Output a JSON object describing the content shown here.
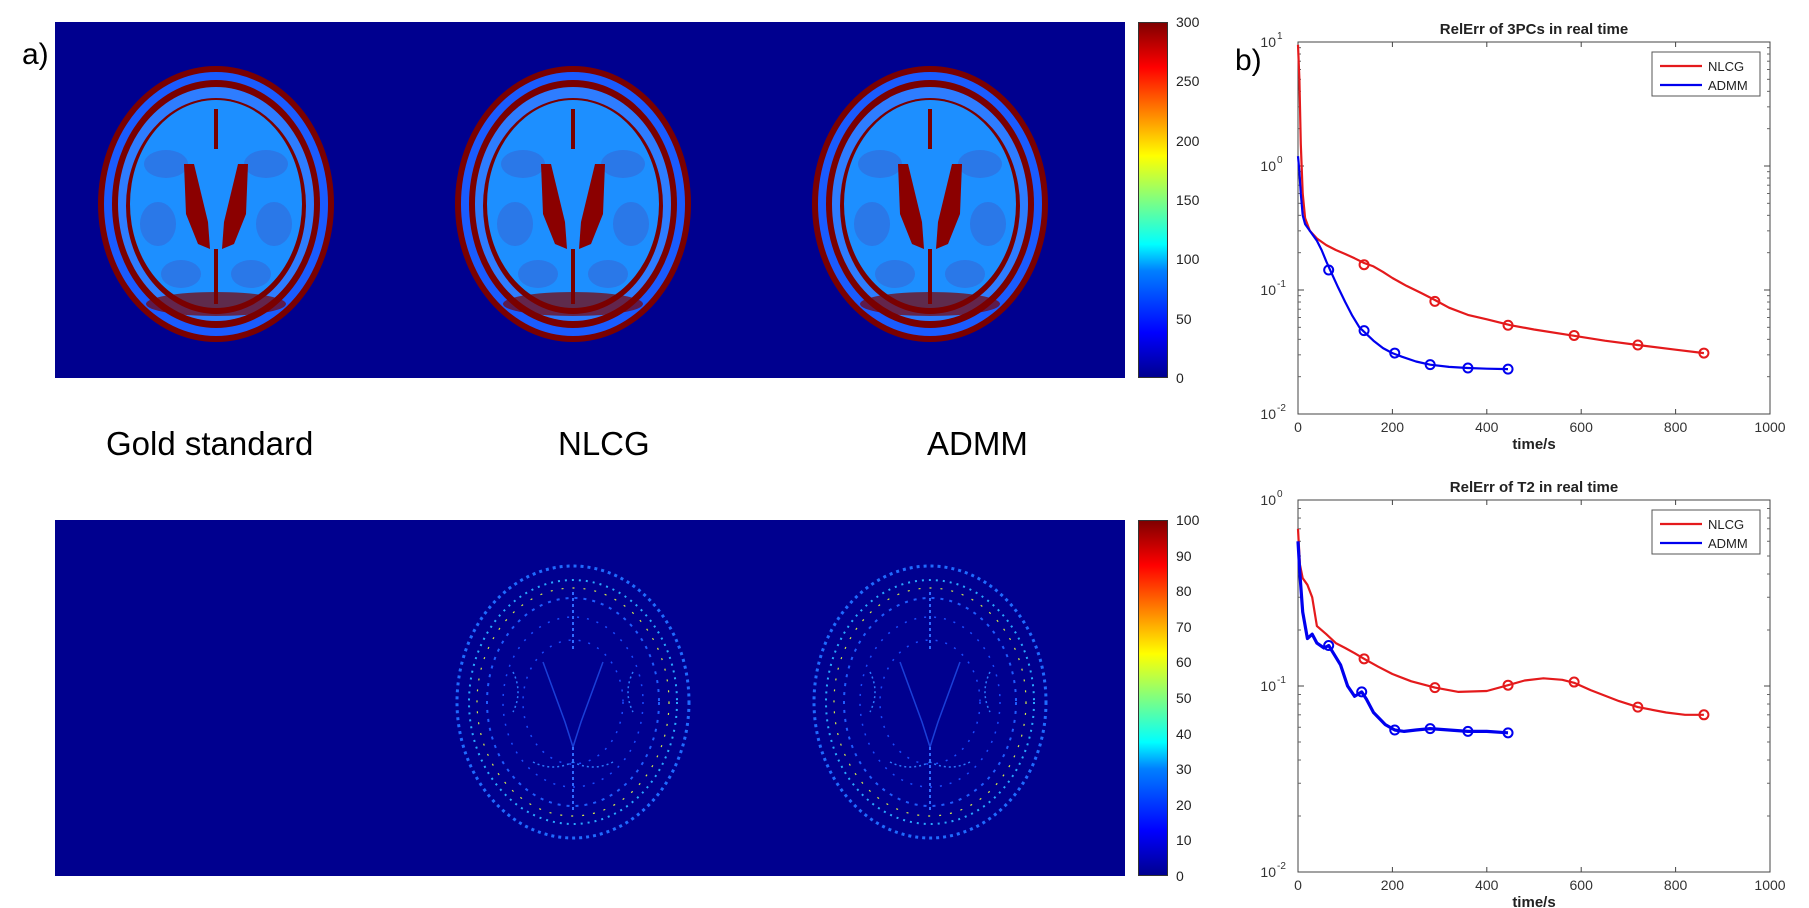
{
  "panel_a": {
    "label": "a)",
    "captions": [
      "Gold standard",
      "NLCG",
      "ADMM"
    ],
    "top_colorbar": {
      "ticks": [
        "300",
        "250",
        "200",
        "150",
        "100",
        "50",
        "0"
      ],
      "max": 300
    },
    "bottom_colorbar": {
      "ticks": [
        "100",
        "90",
        "80",
        "70",
        "60",
        "50",
        "40",
        "30",
        "20",
        "10",
        "0"
      ],
      "max": 100
    }
  },
  "panel_b": {
    "label": "b)"
  },
  "chart_data": [
    {
      "type": "line",
      "title": "RelErr of 3PCs in real time",
      "xlabel": "time/s",
      "ylabel": "",
      "xlim": [
        0,
        1000
      ],
      "ylim": [
        0.01,
        10
      ],
      "yscale": "log",
      "xticks": [
        "0",
        "200",
        "400",
        "600",
        "800",
        "1000"
      ],
      "ytick_values": [
        0.01,
        0.1,
        1,
        10
      ],
      "yticks": [
        {
          "base": "10",
          "exp": "-2"
        },
        {
          "base": "10",
          "exp": "-1"
        },
        {
          "base": "10",
          "exp": "0"
        },
        {
          "base": "10",
          "exp": "1"
        }
      ],
      "legend": "top-right",
      "series": [
        {
          "name": "NLCG",
          "color": "#e41a1c",
          "x": [
            0,
            3,
            6,
            10,
            15,
            25,
            40,
            60,
            80,
            100,
            120,
            140,
            160,
            180,
            200,
            230,
            260,
            290,
            320,
            360,
            400,
            450,
            500,
            580,
            650,
            720,
            800,
            860
          ],
          "y": [
            9.5,
            5.0,
            1.5,
            0.6,
            0.38,
            0.3,
            0.26,
            0.23,
            0.21,
            0.195,
            0.18,
            0.165,
            0.155,
            0.14,
            0.125,
            0.108,
            0.095,
            0.083,
            0.072,
            0.063,
            0.058,
            0.052,
            0.048,
            0.043,
            0.039,
            0.036,
            0.033,
            0.031
          ],
          "markers_x": [
            140,
            290,
            445,
            585,
            720,
            860
          ],
          "markers_y": [
            0.16,
            0.081,
            0.052,
            0.043,
            0.036,
            0.031
          ]
        },
        {
          "name": "ADMM",
          "color": "#0000ee",
          "x": [
            0,
            3,
            6,
            10,
            15,
            25,
            40,
            50,
            60,
            70,
            85,
            100,
            115,
            130,
            140,
            160,
            180,
            200,
            220,
            250,
            280,
            320,
            360,
            400,
            445
          ],
          "y": [
            1.2,
            0.9,
            0.6,
            0.4,
            0.34,
            0.3,
            0.25,
            0.21,
            0.17,
            0.14,
            0.105,
            0.08,
            0.062,
            0.05,
            0.046,
            0.039,
            0.034,
            0.031,
            0.029,
            0.0265,
            0.025,
            0.024,
            0.0235,
            0.0232,
            0.023
          ],
          "markers_x": [
            65,
            140,
            205,
            280,
            360,
            445
          ],
          "markers_y": [
            0.145,
            0.047,
            0.031,
            0.025,
            0.0235,
            0.023
          ]
        }
      ]
    },
    {
      "type": "line",
      "title": "RelErr of T2 in real time",
      "xlabel": "time/s",
      "ylabel": "",
      "xlim": [
        0,
        1000
      ],
      "ylim": [
        0.01,
        1
      ],
      "yscale": "log",
      "xticks": [
        "0",
        "200",
        "400",
        "600",
        "800",
        "1000"
      ],
      "ytick_values": [
        0.01,
        0.1,
        1
      ],
      "yticks": [
        {
          "base": "10",
          "exp": "-2"
        },
        {
          "base": "10",
          "exp": "-1"
        },
        {
          "base": "10",
          "exp": "0"
        }
      ],
      "legend": "top-right",
      "series": [
        {
          "name": "NLCG",
          "color": "#e41a1c",
          "x": [
            0,
            4,
            10,
            20,
            30,
            40,
            60,
            80,
            100,
            120,
            140,
            170,
            200,
            240,
            290,
            340,
            400,
            445,
            480,
            520,
            560,
            585,
            620,
            680,
            720,
            780,
            820,
            860
          ],
          "y": [
            0.7,
            0.45,
            0.38,
            0.35,
            0.3,
            0.21,
            0.19,
            0.17,
            0.16,
            0.15,
            0.14,
            0.127,
            0.116,
            0.106,
            0.098,
            0.093,
            0.094,
            0.101,
            0.107,
            0.11,
            0.108,
            0.104,
            0.095,
            0.083,
            0.077,
            0.072,
            0.07,
            0.07
          ],
          "markers_x": [
            140,
            290,
            445,
            585,
            720,
            860
          ],
          "markers_y": [
            0.14,
            0.098,
            0.101,
            0.105,
            0.077,
            0.07
          ],
          "width": 2.2
        },
        {
          "name": "ADMM",
          "color": "#0000ee",
          "x": [
            0,
            4,
            10,
            20,
            30,
            40,
            55,
            65,
            75,
            90,
            105,
            120,
            135,
            145,
            160,
            185,
            205,
            225,
            250,
            280,
            320,
            360,
            400,
            445
          ],
          "y": [
            0.6,
            0.4,
            0.25,
            0.18,
            0.19,
            0.17,
            0.16,
            0.165,
            0.15,
            0.13,
            0.1,
            0.088,
            0.093,
            0.085,
            0.072,
            0.062,
            0.058,
            0.057,
            0.058,
            0.059,
            0.058,
            0.057,
            0.057,
            0.056
          ],
          "markers_x": [
            65,
            135,
            205,
            280,
            360,
            445
          ],
          "markers_y": [
            0.165,
            0.093,
            0.058,
            0.059,
            0.057,
            0.056
          ],
          "width": 3.2
        }
      ]
    }
  ]
}
